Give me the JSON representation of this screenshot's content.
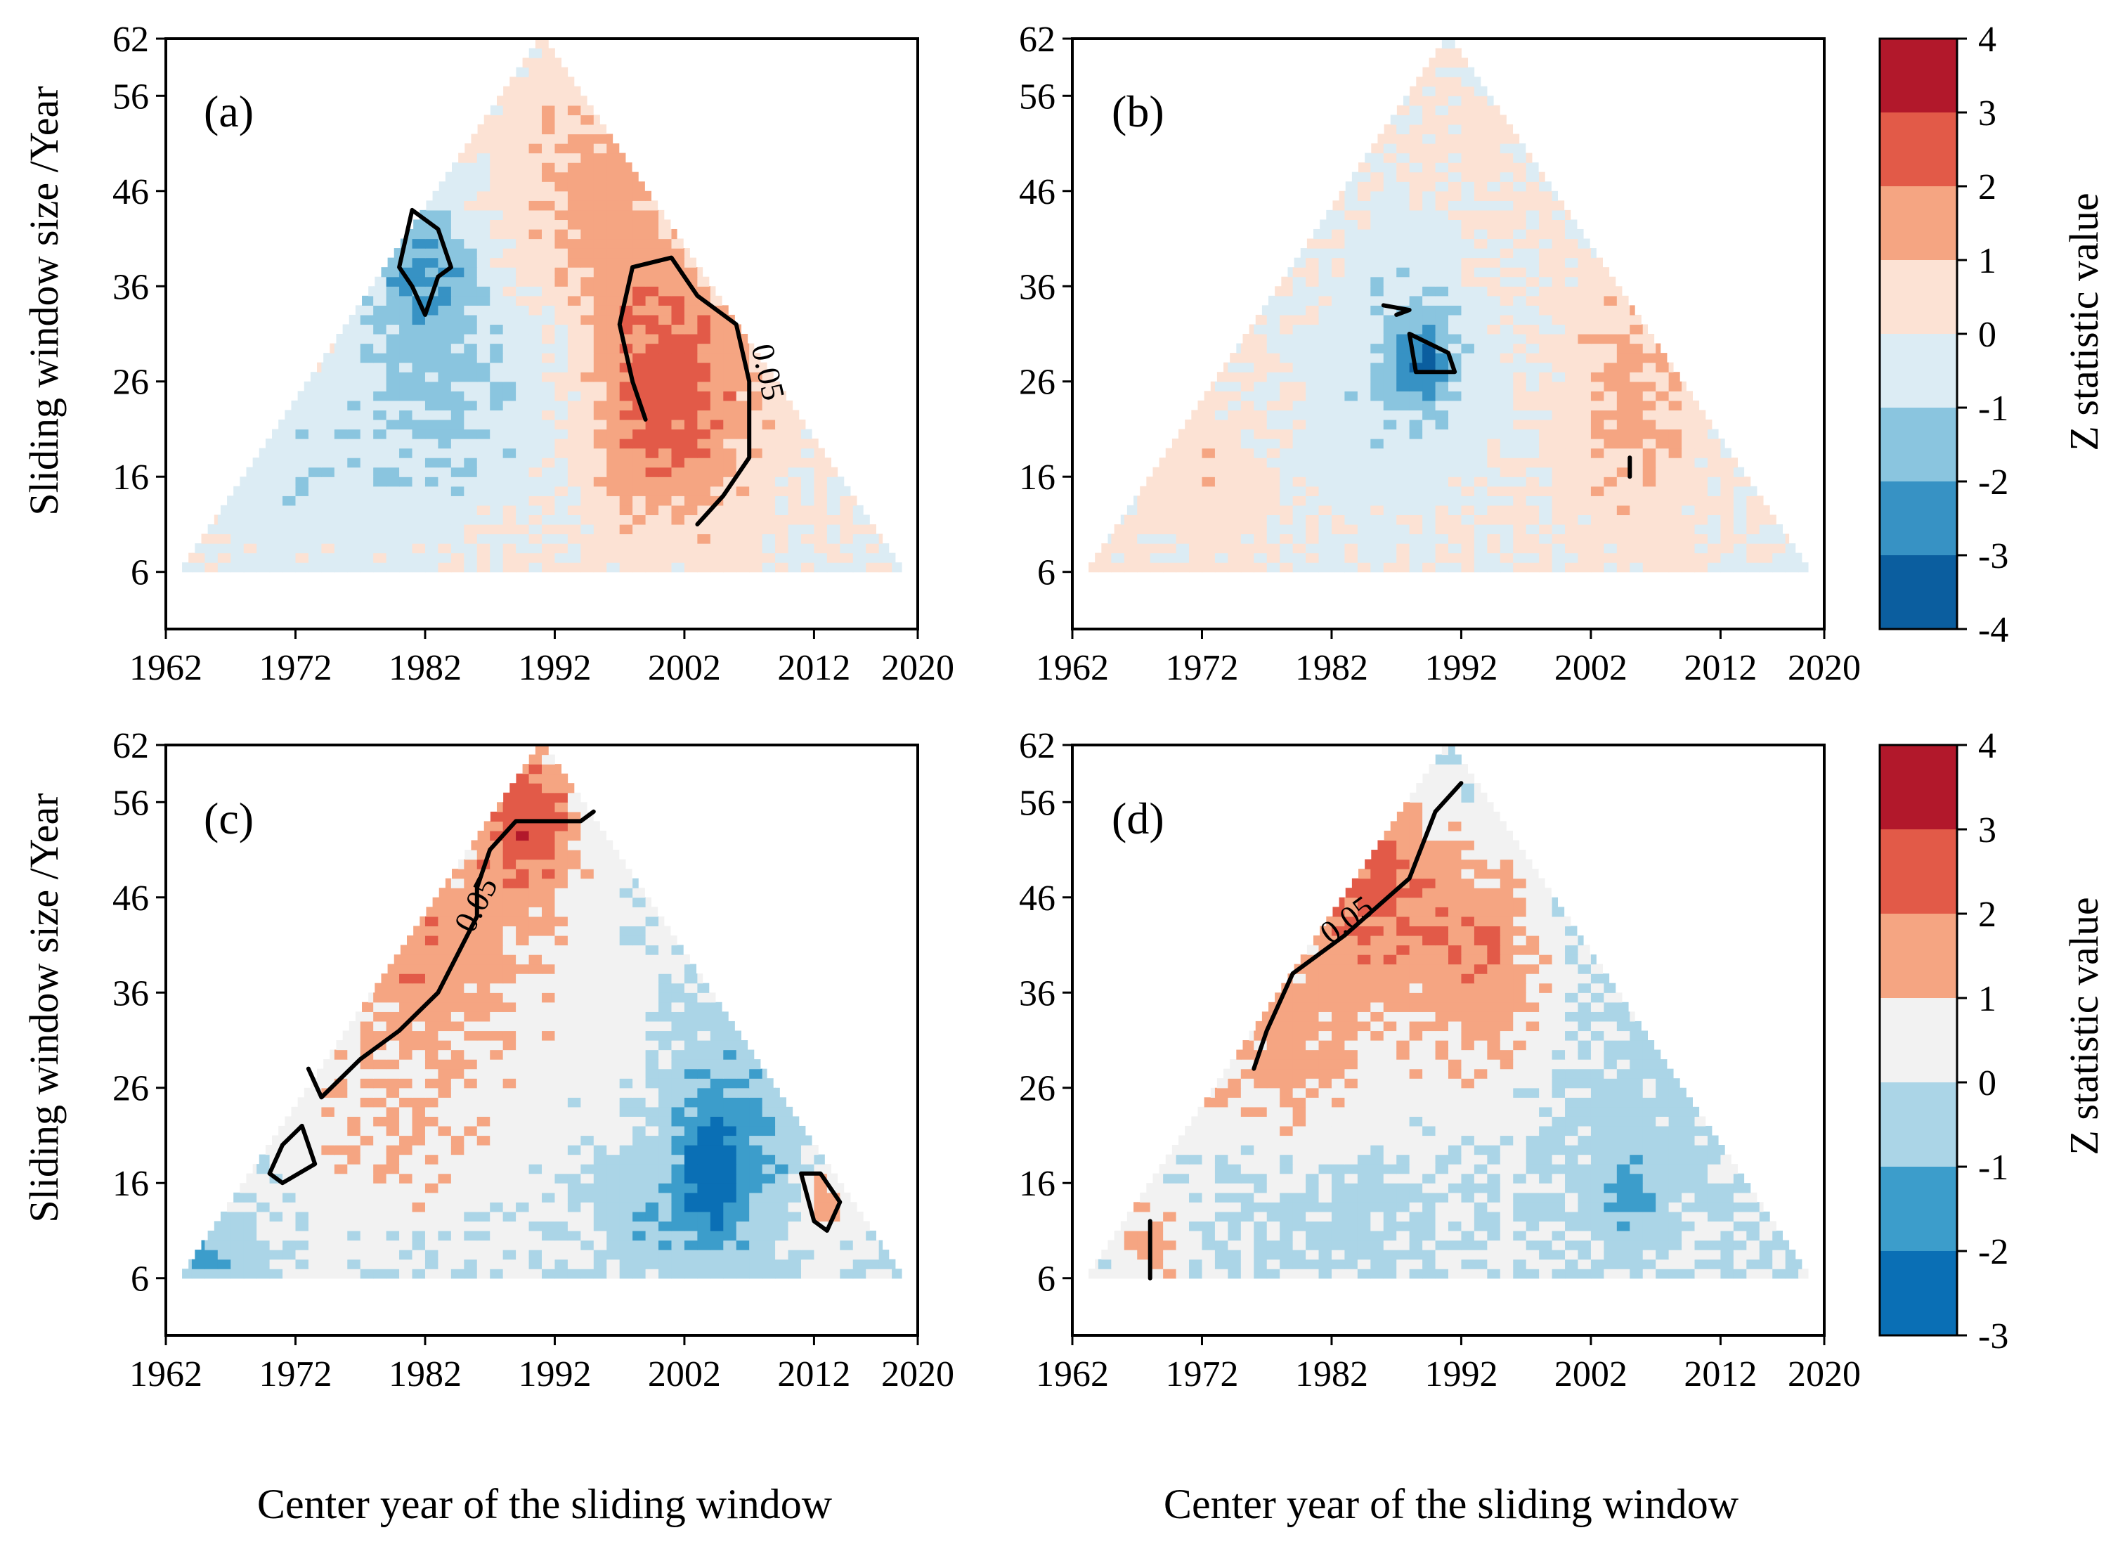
{
  "chart_data": [
    {
      "panel": "(a)",
      "type": "heatmap",
      "xlabel": "",
      "ylabel": "Sliding window size /Year",
      "xlim": [
        1962,
        2020
      ],
      "ylim": [
        0,
        62
      ],
      "xticks": [
        "1962",
        "1972",
        "1982",
        "1992",
        "2002",
        "2012",
        "2020"
      ],
      "yticks": [
        "6",
        "16",
        "26",
        "36",
        "46",
        "56",
        "62"
      ],
      "regions": [
        {
          "cx": 1990,
          "cy": 48,
          "rx": 5,
          "ry": 12,
          "v": 0.6
        },
        {
          "cx": 1996,
          "cy": 44,
          "rx": 5,
          "ry": 14,
          "v": 1.2
        },
        {
          "cx": 1982,
          "cy": 38,
          "rx": 4,
          "ry": 8,
          "v": -1.9
        },
        {
          "cx": 1984,
          "cy": 24,
          "rx": 8,
          "ry": 14,
          "v": -1.1
        },
        {
          "cx": 1971,
          "cy": 16,
          "rx": 8,
          "ry": 10,
          "v": -0.6
        },
        {
          "cx": 2002,
          "cy": 26,
          "rx": 6,
          "ry": 14,
          "v": 2.2
        },
        {
          "cx": 1998,
          "cy": 20,
          "rx": 4,
          "ry": 10,
          "v": 0.9
        },
        {
          "cx": 1986,
          "cy": 10,
          "rx": 3,
          "ry": 4,
          "v": 0.3
        }
      ],
      "contours": [
        {
          "label": "",
          "points": [
            [
              1981,
              44
            ],
            [
              1983,
              42
            ],
            [
              1984,
              38
            ],
            [
              1983,
              37
            ],
            [
              1982,
              33
            ],
            [
              1981,
              36
            ],
            [
              1980,
              38
            ],
            [
              1981,
              44
            ]
          ]
        },
        {
          "label": "0.05",
          "points": [
            [
              1998,
              38
            ],
            [
              2001,
              39
            ],
            [
              2003,
              35
            ],
            [
              2006,
              32
            ],
            [
              2007,
              26
            ],
            [
              2007,
              18
            ],
            [
              2005,
              14
            ],
            [
              2003,
              11
            ]
          ]
        },
        {
          "label": "",
          "points": [
            [
              1998,
              38
            ],
            [
              1997,
              32
            ],
            [
              1998,
              26
            ],
            [
              1999,
              22
            ]
          ]
        }
      ]
    },
    {
      "panel": "(b)",
      "type": "heatmap",
      "xlabel": "",
      "ylabel": "",
      "xlim": [
        1962,
        2020
      ],
      "ylim": [
        0,
        62
      ],
      "xticks": [
        "1962",
        "1972",
        "1982",
        "1992",
        "2002",
        "2012",
        "2020"
      ],
      "yticks": [
        "6",
        "16",
        "26",
        "36",
        "46",
        "56",
        "62"
      ],
      "regions": [
        {
          "cx": 1992,
          "cy": 50,
          "rx": 6,
          "ry": 14,
          "v": 0.4
        },
        {
          "cx": 1988,
          "cy": 30,
          "rx": 5,
          "ry": 14,
          "v": -1.3
        },
        {
          "cx": 1989,
          "cy": 28,
          "rx": 2,
          "ry": 4,
          "v": -2.2
        },
        {
          "cx": 2005,
          "cy": 24,
          "rx": 5,
          "ry": 14,
          "v": 1.3
        },
        {
          "cx": 1972,
          "cy": 16,
          "rx": 6,
          "ry": 8,
          "v": 0.7
        },
        {
          "cx": 1982,
          "cy": 16,
          "rx": 5,
          "ry": 8,
          "v": -0.4
        }
      ],
      "contours": [
        {
          "label": "",
          "points": [
            [
              1988,
              31
            ],
            [
              1991,
              29
            ],
            [
              1991.5,
              27
            ],
            [
              1988.5,
              27
            ],
            [
              1988,
              31
            ]
          ]
        },
        {
          "label": "",
          "points": [
            [
              1986,
              34
            ],
            [
              1988,
              33.5
            ],
            [
              1987,
              33
            ]
          ]
        },
        {
          "label": "",
          "points": [
            [
              2005,
              18
            ],
            [
              2005,
              16
            ]
          ]
        }
      ]
    },
    {
      "panel": "(c)",
      "type": "heatmap",
      "xlabel": "Center year of the sliding window",
      "ylabel": "Sliding window size /Year",
      "xlim": [
        1962,
        2020
      ],
      "ylim": [
        0,
        62
      ],
      "xticks": [
        "1962",
        "1972",
        "1982",
        "1992",
        "2002",
        "2012",
        "2020"
      ],
      "yticks": [
        "6",
        "16",
        "26",
        "36",
        "46",
        "56",
        "62"
      ],
      "regions": [
        {
          "cx": 1982,
          "cy": 40,
          "rx": 8,
          "ry": 12,
          "v": 1.7
        },
        {
          "cx": 1990,
          "cy": 54,
          "rx": 4,
          "ry": 8,
          "v": 2.6
        },
        {
          "cx": 1980,
          "cy": 20,
          "rx": 10,
          "ry": 10,
          "v": 0.9
        },
        {
          "cx": 1996,
          "cy": 32,
          "rx": 6,
          "ry": 14,
          "v": 0.5
        },
        {
          "cx": 2005,
          "cy": 20,
          "rx": 6,
          "ry": 12,
          "v": -1.3
        },
        {
          "cx": 2004,
          "cy": 17,
          "rx": 2,
          "ry": 6,
          "v": -2.2
        },
        {
          "cx": 1999,
          "cy": 12,
          "rx": 4,
          "ry": 5,
          "v": -0.6
        },
        {
          "cx": 1965,
          "cy": 8,
          "rx": 3,
          "ry": 4,
          "v": -1.0
        },
        {
          "cx": 2013,
          "cy": 14,
          "rx": 2,
          "ry": 4,
          "v": 1.7
        }
      ],
      "contours": [
        {
          "label": "0.05",
          "points": [
            [
              1973,
              28
            ],
            [
              1974,
              25
            ],
            [
              1977,
              29
            ],
            [
              1980,
              32
            ],
            [
              1983,
              36
            ],
            [
              1986,
              44
            ],
            [
              1986,
              47
            ],
            [
              1987,
              51
            ],
            [
              1989,
              54
            ],
            [
              1994,
              54
            ],
            [
              1995,
              55
            ]
          ]
        },
        {
          "label": "",
          "points": [
            [
              1970,
              17
            ],
            [
              1971,
              20
            ],
            [
              1972.5,
              22
            ],
            [
              1973.5,
              18
            ],
            [
              1971,
              16
            ],
            [
              1970,
              17
            ]
          ]
        },
        {
          "label": "",
          "points": [
            [
              2011,
              17
            ],
            [
              2012.5,
              17
            ],
            [
              2014,
              14
            ],
            [
              2013,
              11
            ],
            [
              2012,
              12
            ],
            [
              2011,
              17
            ]
          ]
        }
      ]
    },
    {
      "panel": "(d)",
      "type": "heatmap",
      "xlabel": "Center year of the sliding window",
      "ylabel": "",
      "xlim": [
        1962,
        2020
      ],
      "ylim": [
        0,
        62
      ],
      "xticks": [
        "1962",
        "1972",
        "1982",
        "1992",
        "2002",
        "2012",
        "2020"
      ],
      "yticks": [
        "6",
        "16",
        "26",
        "36",
        "46",
        "56",
        "62"
      ],
      "regions": [
        {
          "cx": 1985,
          "cy": 48,
          "rx": 5,
          "ry": 10,
          "v": 2.2
        },
        {
          "cx": 1978,
          "cy": 32,
          "rx": 9,
          "ry": 12,
          "v": 1.4
        },
        {
          "cx": 1993,
          "cy": 40,
          "rx": 5,
          "ry": 12,
          "v": 1.4
        },
        {
          "cx": 1995,
          "cy": 28,
          "rx": 6,
          "ry": 18,
          "v": 0.6
        },
        {
          "cx": 2002,
          "cy": 22,
          "rx": 10,
          "ry": 12,
          "v": -0.5
        },
        {
          "cx": 2005,
          "cy": 14,
          "rx": 2,
          "ry": 4,
          "v": -1.3
        },
        {
          "cx": 1980,
          "cy": 12,
          "rx": 8,
          "ry": 6,
          "v": -0.4
        },
        {
          "cx": 1968,
          "cy": 10,
          "rx": 3,
          "ry": 5,
          "v": 1.3
        }
      ],
      "contours": [
        {
          "label": "0.05",
          "points": [
            [
              1976,
              28
            ],
            [
              1977,
              32
            ],
            [
              1979,
              38
            ],
            [
              1981,
              40
            ],
            [
              1983,
              42
            ],
            [
              1988,
              48
            ],
            [
              1990,
              55
            ],
            [
              1992,
              58
            ]
          ]
        },
        {
          "label": "",
          "points": [
            [
              1968,
              12
            ],
            [
              1968,
              6
            ]
          ]
        }
      ]
    }
  ],
  "colorbars": [
    {
      "label": "Z statistic value",
      "ticks": [
        "4",
        "3",
        "2",
        "1",
        "0",
        "-1",
        "-2",
        "-3",
        "-4"
      ],
      "colors": [
        "#b2182b",
        "#e25a48",
        "#f5a582",
        "#fce2d4",
        "#dcecf4",
        "#8ac5df",
        "#3792c4",
        "#0b5e9f"
      ]
    },
    {
      "label": "Z statistic value",
      "ticks": [
        "4",
        "3",
        "2",
        "1",
        "0",
        "-1",
        "-2",
        "-3"
      ],
      "colors": [
        "#b2182b",
        "#e25a48",
        "#f5a582",
        "#f2f2f2",
        "#abd5e7",
        "#3c9dcb",
        "#0a6fb5"
      ]
    }
  ]
}
